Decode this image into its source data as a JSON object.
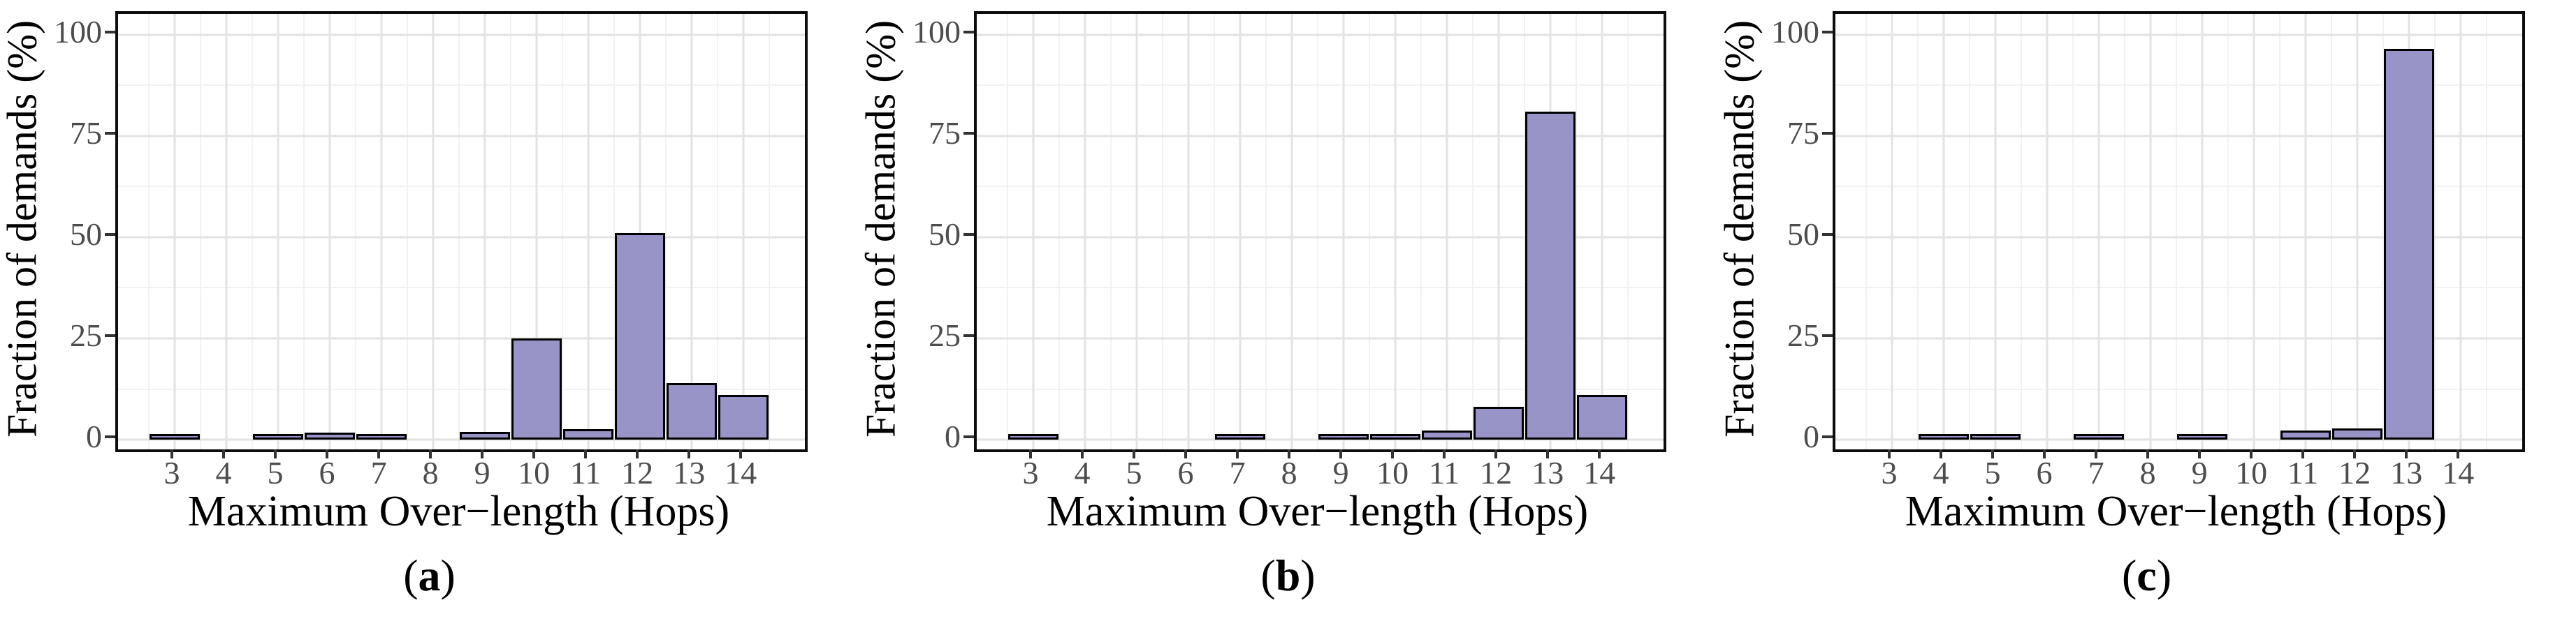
{
  "figure": {
    "axes": {
      "y_title": "Fraction of demands (%)",
      "x_title": "Maximum Over−length (Hops)",
      "y_ticks": [
        0,
        25,
        50,
        75,
        100
      ],
      "y_minor_ticks": [
        12.5,
        37.5,
        62.5,
        87.5
      ],
      "y_domain": {
        "min": -2.4,
        "max": 105.1
      },
      "ylim": [
        0,
        100
      ]
    },
    "caption_open": "(",
    "caption_close": ")",
    "colors": {
      "bar_fill": "#9994C7",
      "bar_stroke": "#000000",
      "grid_major": "#E3E3E3",
      "grid_minor": "#F2F2F2",
      "axis_text": "#4D4D4D",
      "axis_title": "#000000",
      "panel_border": "#0D0D0D",
      "background": "#FFFFFF"
    }
  },
  "chart_data": [
    {
      "type": "bar",
      "caption_letter": "a",
      "categories": [
        "3",
        "4",
        "5",
        "6",
        "7",
        "8",
        "9",
        "10",
        "11",
        "12",
        "13",
        "14"
      ],
      "values": [
        0.3,
        0,
        0.3,
        0.7,
        0.4,
        0,
        0.8,
        24,
        1.5,
        50,
        13,
        10
      ],
      "xlabel": "Maximum Over−length (Hops)",
      "ylabel": "Fraction of demands (%)",
      "ylim": [
        0,
        100
      ],
      "grid": true,
      "legend": false
    },
    {
      "type": "bar",
      "caption_letter": "b",
      "categories": [
        "3",
        "4",
        "5",
        "6",
        "7",
        "8",
        "9",
        "10",
        "11",
        "12",
        "13",
        "14"
      ],
      "values": [
        0.3,
        0,
        0,
        0,
        0.4,
        0,
        0.4,
        0.4,
        1.2,
        7,
        80,
        10
      ],
      "xlabel": "Maximum Over−length (Hops)",
      "ylabel": "Fraction of demands (%)",
      "ylim": [
        0,
        100
      ],
      "grid": true,
      "legend": false
    },
    {
      "type": "bar",
      "caption_letter": "c",
      "categories": [
        "3",
        "4",
        "5",
        "6",
        "7",
        "8",
        "9",
        "10",
        "11",
        "12",
        "13",
        "14"
      ],
      "values": [
        0,
        0.3,
        0.3,
        0,
        0.3,
        0,
        0.3,
        0,
        1.2,
        1.8,
        95.5,
        0
      ],
      "xlabel": "Maximum Over−length (Hops)",
      "ylabel": "Fraction of demands (%)",
      "ylim": [
        0,
        100
      ],
      "grid": true,
      "legend": false
    }
  ]
}
